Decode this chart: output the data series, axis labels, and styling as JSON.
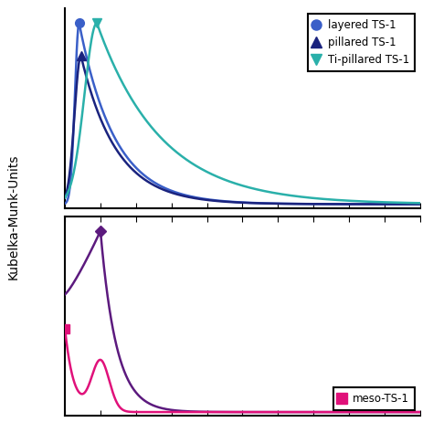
{
  "ylabel": "Kubelka-Munk-Units",
  "background_color": "#ffffff",
  "top_panel": {
    "layered_color": "#3a5fc8",
    "pillared_color": "#1a237e",
    "ti_pillared_color": "#2ab0aa"
  },
  "bottom_panel": {
    "meso_color": "#e0117a",
    "purple_color": "#5c1a7e"
  },
  "legend1": {
    "entries": [
      "layered TS-1",
      "pillared TS-1",
      "Ti-pillared TS-1"
    ],
    "colors": [
      "#3a5fc8",
      "#1a237e",
      "#2ab0aa"
    ],
    "markers": [
      "o",
      "^",
      "v"
    ]
  },
  "legend2": {
    "entries": [
      "meso-TS-1"
    ],
    "colors": [
      "#e0117a"
    ],
    "markers": [
      "s"
    ]
  }
}
